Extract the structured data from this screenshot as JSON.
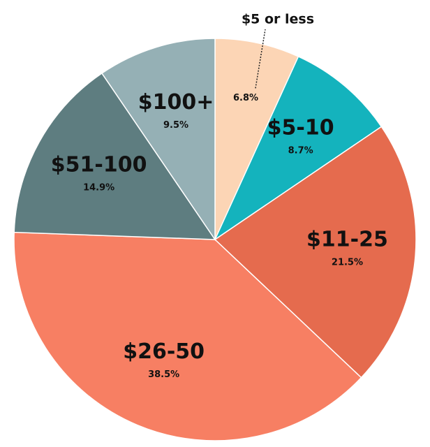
{
  "chart_data": {
    "type": "pie",
    "categories": [
      "$5 or less",
      "$5-10",
      "$11-25",
      "$26-50",
      "$51-100",
      "$100+"
    ],
    "values": [
      6.8,
      8.7,
      21.5,
      38.5,
      14.9,
      9.5
    ],
    "value_labels": [
      "6.8%",
      "8.7%",
      "21.5%",
      "38.5%",
      "14.9%",
      "9.5%"
    ],
    "colors": [
      "#fcd5b5",
      "#14b3bd",
      "#e56b4e",
      "#f77f63",
      "#5e7d80",
      "#95b0b5"
    ]
  }
}
